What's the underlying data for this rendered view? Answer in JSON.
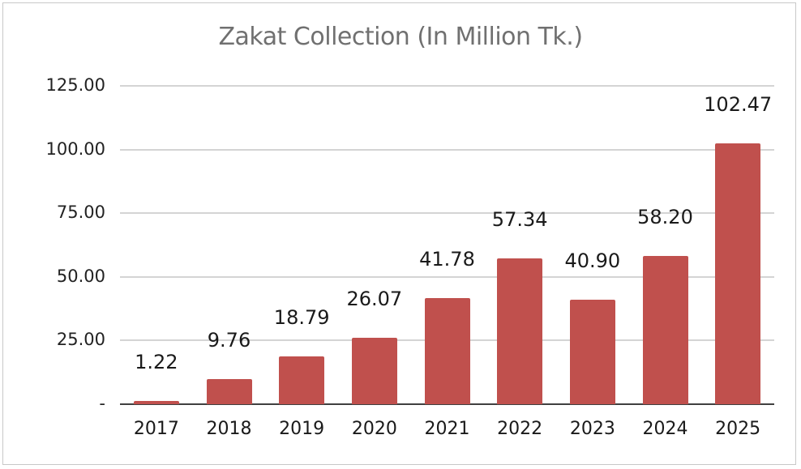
{
  "chart_data": {
    "type": "bar",
    "title": "Zakat Collection (In Million Tk.)",
    "xlabel": "",
    "ylabel": "",
    "categories": [
      "2017",
      "2018",
      "2019",
      "2020",
      "2021",
      "2022",
      "2023",
      "2024",
      "2025"
    ],
    "values": [
      1.22,
      9.76,
      18.79,
      26.07,
      41.78,
      57.34,
      40.9,
      58.2,
      102.47
    ],
    "data_labels": [
      "1.22",
      "9.76",
      "18.79",
      "26.07",
      "41.78",
      "57.34",
      "40.90",
      "58.20",
      "102.47"
    ],
    "ylim": [
      0,
      125
    ],
    "yticks": [
      0,
      25,
      50,
      75,
      100,
      125
    ],
    "ytick_labels": [
      "-",
      "25.00",
      "50.00",
      "75.00",
      "100.00",
      "125.00"
    ],
    "grid": true,
    "legend": null,
    "bar_color": "#c0504d"
  }
}
